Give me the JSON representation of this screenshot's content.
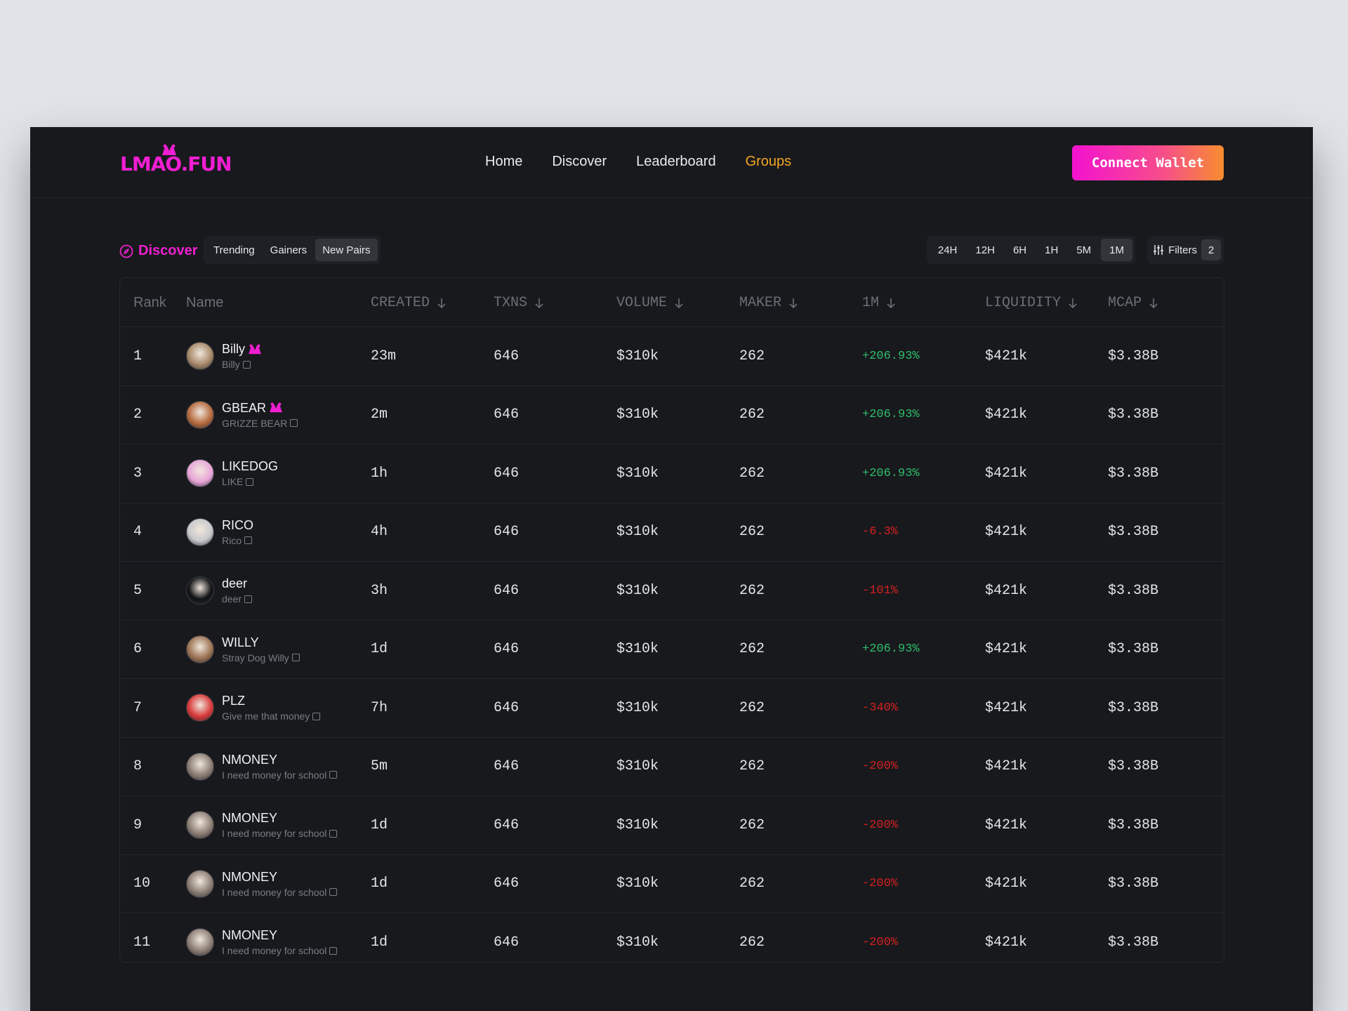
{
  "header": {
    "logo": "LMAO.FUN",
    "nav": [
      "Home",
      "Discover",
      "Leaderboard",
      "Groups"
    ],
    "active_nav": "Groups",
    "connect_label": "Connect Wallet"
  },
  "toolbar": {
    "discover_label": "Discover",
    "tabs": [
      "Trending",
      "Gainers",
      "New Pairs"
    ],
    "selected_tab": "New Pairs",
    "timeframes": [
      "24H",
      "12H",
      "6H",
      "1H",
      "5M",
      "1M"
    ],
    "selected_timeframe": "1M",
    "filters_label": "Filters",
    "filters_count": "2"
  },
  "table": {
    "columns": [
      "Rank",
      "Name",
      "CREATED",
      "TXNS",
      "VOLUME",
      "MAKER",
      "1M",
      "LIQUIDITY",
      "MCAP"
    ],
    "rows": [
      {
        "rank": "1",
        "name": "Billy",
        "sub": "Billy",
        "verified": true,
        "created": "23m",
        "txns": "646",
        "volume": "$310k",
        "maker": "262",
        "change": "+206.93%",
        "trend": "pos",
        "liquidity": "$421k",
        "mcap": "$3.38B",
        "avatar": "#a88a6a"
      },
      {
        "rank": "2",
        "name": "GBEAR",
        "sub": "GRIZZE BEAR",
        "verified": true,
        "created": "2m",
        "txns": "646",
        "volume": "$310k",
        "maker": "262",
        "change": "+206.93%",
        "trend": "pos",
        "liquidity": "$421k",
        "mcap": "$3.38B",
        "avatar": "#b56a3e"
      },
      {
        "rank": "3",
        "name": "LIKEDOG",
        "sub": "LIKE",
        "verified": false,
        "created": "1h",
        "txns": "646",
        "volume": "$310k",
        "maker": "262",
        "change": "+206.93%",
        "trend": "pos",
        "liquidity": "$421k",
        "mcap": "$3.38B",
        "avatar": "#e9a6d9"
      },
      {
        "rank": "4",
        "name": "RICO",
        "sub": "Rico",
        "verified": false,
        "created": "4h",
        "txns": "646",
        "volume": "$310k",
        "maker": "262",
        "change": "-6.3%",
        "trend": "neg",
        "liquidity": "$421k",
        "mcap": "$3.38B",
        "avatar": "#c8c9cc"
      },
      {
        "rank": "5",
        "name": "deer",
        "sub": "deer",
        "verified": false,
        "created": "3h",
        "txns": "646",
        "volume": "$310k",
        "maker": "262",
        "change": "-101%",
        "trend": "neg",
        "liquidity": "$421k",
        "mcap": "$3.38B",
        "avatar": "#111214"
      },
      {
        "rank": "6",
        "name": "WILLY",
        "sub": "Stray Dog Willy",
        "verified": false,
        "created": "1d",
        "txns": "646",
        "volume": "$310k",
        "maker": "262",
        "change": "+206.93%",
        "trend": "pos",
        "liquidity": "$421k",
        "mcap": "$3.38B",
        "avatar": "#9c7454"
      },
      {
        "rank": "7",
        "name": "PLZ",
        "sub": "Give me that money",
        "verified": false,
        "created": "7h",
        "txns": "646",
        "volume": "$310k",
        "maker": "262",
        "change": "-340%",
        "trend": "neg",
        "liquidity": "$421k",
        "mcap": "$3.38B",
        "avatar": "#d93a3a"
      },
      {
        "rank": "8",
        "name": "NMONEY",
        "sub": "I need money for school",
        "verified": false,
        "created": "5m",
        "txns": "646",
        "volume": "$310k",
        "maker": "262",
        "change": "-200%",
        "trend": "neg",
        "liquidity": "$421k",
        "mcap": "$3.38B",
        "avatar": "#8c7e74"
      },
      {
        "rank": "9",
        "name": "NMONEY",
        "sub": "I need money for school",
        "verified": false,
        "created": "1d",
        "txns": "646",
        "volume": "$310k",
        "maker": "262",
        "change": "-200%",
        "trend": "neg",
        "liquidity": "$421k",
        "mcap": "$3.38B",
        "avatar": "#8c7e74"
      },
      {
        "rank": "10",
        "name": "NMONEY",
        "sub": "I need money for school",
        "verified": false,
        "created": "1d",
        "txns": "646",
        "volume": "$310k",
        "maker": "262",
        "change": "-200%",
        "trend": "neg",
        "liquidity": "$421k",
        "mcap": "$3.38B",
        "avatar": "#8c7e74"
      },
      {
        "rank": "11",
        "name": "NMONEY",
        "sub": "I need money for school",
        "verified": false,
        "created": "1d",
        "txns": "646",
        "volume": "$310k",
        "maker": "262",
        "change": "-200%",
        "trend": "neg",
        "liquidity": "$421k",
        "mcap": "$3.38B",
        "avatar": "#8c7e74"
      }
    ]
  },
  "colors": {
    "accent": "#f01ed2",
    "active_nav": "#f3a623",
    "positive": "#2ebd6b",
    "negative": "#d4201f"
  }
}
